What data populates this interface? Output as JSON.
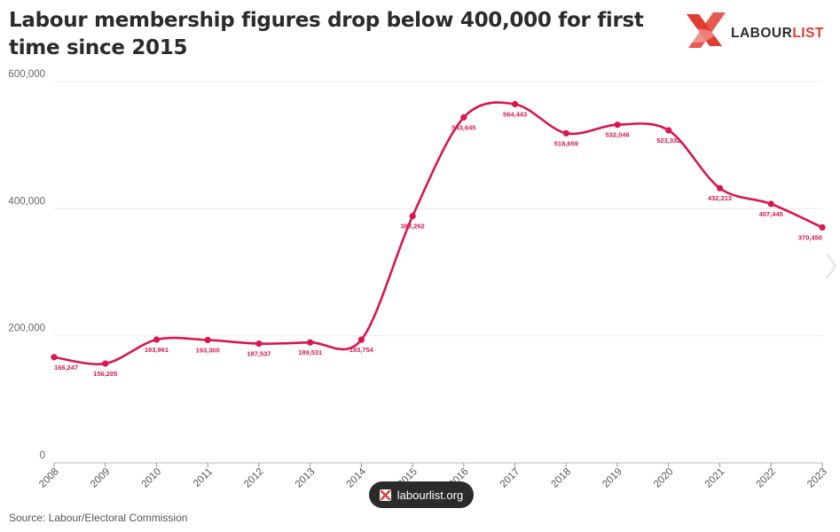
{
  "title": "Labour membership figures drop below 400,000 for first time since 2015",
  "logo": {
    "text_prefix": "LABOUR",
    "text_suffix": "LIST"
  },
  "source": "Source: Labour/Electoral Commission",
  "badge": {
    "label": "labourlist.org"
  },
  "colors": {
    "line": "#d8174f",
    "brand": "#e03c31",
    "grid": "#e8e8e8",
    "badge_bg": "#2b2b2b"
  },
  "chart_data": {
    "type": "line",
    "title": "Labour membership figures drop below 400,000 for first time since 2015",
    "xlabel": "",
    "ylabel": "",
    "ylim": [
      0,
      600000
    ],
    "y_ticks": [
      "0",
      "200,000",
      "400,000",
      "600,000"
    ],
    "grid": true,
    "categories": [
      "2008",
      "2009",
      "2010",
      "2011",
      "2012",
      "2013",
      "2014",
      "2015",
      "2016",
      "2017",
      "2018",
      "2019",
      "2020",
      "2021",
      "2022",
      "2023"
    ],
    "series": [
      {
        "values": [
          166247,
          156205,
          193961,
          193300,
          187537,
          189531,
          193754,
          388262,
          543645,
          564443,
          518659,
          532046,
          523332,
          432213,
          407445,
          370450
        ],
        "labels": [
          "166,247",
          "156,205",
          "193,961",
          "193,300",
          "187,537",
          "189,531",
          "193,754",
          "388,262",
          "543,645",
          "564,443",
          "518,659",
          "532,046",
          "523,332",
          "432,213",
          "407,445",
          "370,450"
        ]
      }
    ]
  }
}
